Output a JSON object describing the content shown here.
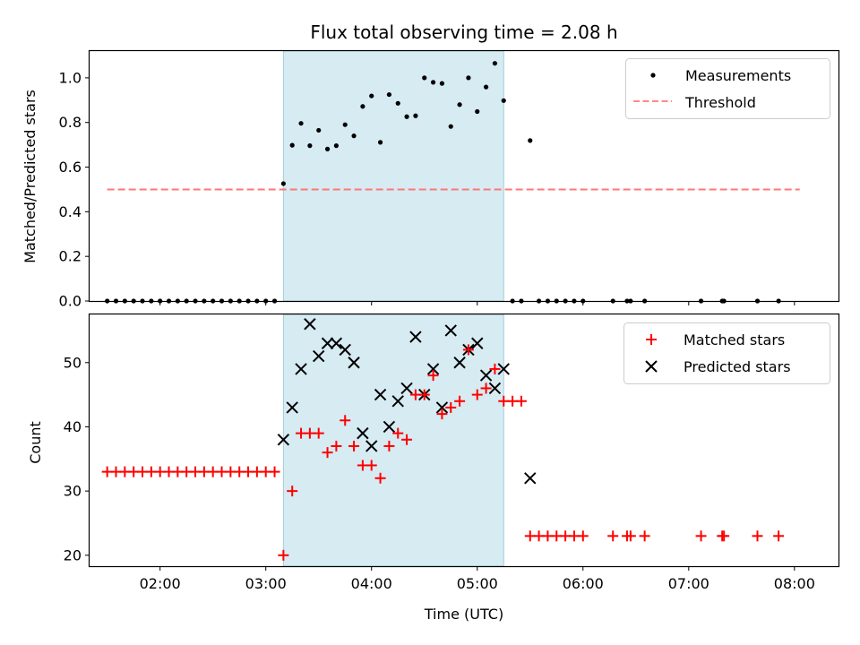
{
  "chart_data": [
    {
      "type": "scatter",
      "title": "Flux total observing time = 2.08 h",
      "ylabel": "Matched/Predicted stars",
      "xlim": [
        "01:20",
        "08:25"
      ],
      "ylim": [
        0,
        1.12
      ],
      "yticks": [
        0.0,
        0.2,
        0.4,
        0.6,
        0.8,
        1.0
      ],
      "ytick_labels": [
        "0.0",
        "0.2",
        "0.4",
        "0.6",
        "0.8",
        "1.0"
      ],
      "highlight_span": [
        "03:10",
        "05:15"
      ],
      "legend_position": "top-right",
      "series": [
        {
          "name": "Measurements",
          "kind": "points",
          "color": "#000000",
          "x": [
            "01:30",
            "01:35",
            "01:40",
            "01:45",
            "01:50",
            "01:55",
            "02:00",
            "02:05",
            "02:10",
            "02:15",
            "02:20",
            "02:25",
            "02:30",
            "02:35",
            "02:40",
            "02:45",
            "02:50",
            "02:55",
            "03:00",
            "03:05",
            "03:10",
            "03:15",
            "03:20",
            "03:25",
            "03:30",
            "03:35",
            "03:40",
            "03:45",
            "03:50",
            "03:55",
            "04:00",
            "04:05",
            "04:10",
            "04:15",
            "04:20",
            "04:25",
            "04:30",
            "04:35",
            "04:40",
            "04:45",
            "04:50",
            "04:55",
            "05:00",
            "05:05",
            "05:10",
            "05:15",
            "05:20",
            "05:25",
            "05:30",
            "05:35",
            "05:40",
            "05:45",
            "05:50",
            "05:55",
            "06:00",
            "06:17",
            "06:25",
            "06:27",
            "06:35",
            "07:07",
            "07:19",
            "07:20",
            "07:39",
            "07:51"
          ],
          "y": [
            0,
            0,
            0,
            0,
            0,
            0,
            0,
            0,
            0,
            0,
            0,
            0,
            0,
            0,
            0,
            0,
            0,
            0,
            0,
            0,
            0.526,
            0.698,
            0.796,
            0.696,
            0.765,
            0.681,
            0.696,
            0.79,
            0.74,
            0.872,
            0.919,
            0.711,
            0.925,
            0.886,
            0.826,
            0.83,
            1.0,
            0.98,
            0.975,
            0.782,
            0.88,
            1.0,
            0.849,
            0.959,
            1.065,
            0.898,
            0,
            0,
            0.719,
            0,
            0,
            0,
            0,
            0,
            0,
            0,
            0,
            0,
            0,
            0,
            0,
            0,
            0,
            0
          ]
        },
        {
          "name": "Threshold",
          "kind": "dashed-line",
          "color": "#ff7777",
          "x": [
            "01:30",
            "08:03"
          ],
          "y": [
            0.5,
            0.5
          ]
        }
      ]
    },
    {
      "type": "scatter",
      "xlabel": "Time (UTC)",
      "ylabel": "Count",
      "xlim": [
        "01:20",
        "08:25"
      ],
      "ylim": [
        18.3,
        57.5
      ],
      "yticks": [
        20,
        30,
        40,
        50
      ],
      "ytick_labels": [
        "20",
        "30",
        "40",
        "50"
      ],
      "xticks": [
        "02:00",
        "03:00",
        "04:00",
        "05:00",
        "06:00",
        "07:00",
        "08:00"
      ],
      "highlight_span": [
        "03:10",
        "05:15"
      ],
      "legend_position": "top-right",
      "series": [
        {
          "name": "Matched stars",
          "kind": "plus",
          "color": "#ff0000",
          "x": [
            "01:30",
            "01:35",
            "01:40",
            "01:45",
            "01:50",
            "01:55",
            "02:00",
            "02:05",
            "02:10",
            "02:15",
            "02:20",
            "02:25",
            "02:30",
            "02:35",
            "02:40",
            "02:45",
            "02:50",
            "02:55",
            "03:00",
            "03:05",
            "03:10",
            "03:15",
            "03:20",
            "03:25",
            "03:30",
            "03:35",
            "03:40",
            "03:45",
            "03:50",
            "03:55",
            "04:00",
            "04:05",
            "04:10",
            "04:15",
            "04:20",
            "04:25",
            "04:30",
            "04:35",
            "04:40",
            "04:45",
            "04:50",
            "04:55",
            "05:00",
            "05:05",
            "05:10",
            "05:15",
            "05:20",
            "05:25",
            "05:30",
            "05:35",
            "05:40",
            "05:45",
            "05:50",
            "05:55",
            "06:00",
            "06:17",
            "06:25",
            "06:27",
            "06:35",
            "07:07",
            "07:19",
            "07:20",
            "07:39",
            "07:51"
          ],
          "y": [
            33,
            33,
            33,
            33,
            33,
            33,
            33,
            33,
            33,
            33,
            33,
            33,
            33,
            33,
            33,
            33,
            33,
            33,
            33,
            33,
            20,
            30,
            39,
            39,
            39,
            36,
            37,
            41,
            37,
            34,
            34,
            32,
            37,
            39,
            38,
            45,
            45,
            48,
            42,
            43,
            44,
            52,
            45,
            46,
            49,
            44,
            44,
            44,
            23,
            23,
            23,
            23,
            23,
            23,
            23,
            23,
            23,
            23,
            23,
            23,
            23,
            23,
            23,
            23
          ]
        },
        {
          "name": "Predicted stars",
          "kind": "x",
          "color": "#000000",
          "x": [
            "03:10",
            "03:15",
            "03:20",
            "03:25",
            "03:30",
            "03:35",
            "03:40",
            "03:45",
            "03:50",
            "03:55",
            "04:00",
            "04:05",
            "04:10",
            "04:15",
            "04:20",
            "04:25",
            "04:30",
            "04:35",
            "04:40",
            "04:45",
            "04:50",
            "04:55",
            "05:00",
            "05:05",
            "05:10",
            "05:15",
            "05:30"
          ],
          "y": [
            38,
            43,
            49,
            56,
            51,
            53,
            53,
            52,
            50,
            39,
            37,
            45,
            40,
            44,
            46,
            54,
            45,
            49,
            43,
            55,
            50,
            52,
            53,
            48,
            46,
            49,
            32
          ]
        }
      ]
    }
  ]
}
